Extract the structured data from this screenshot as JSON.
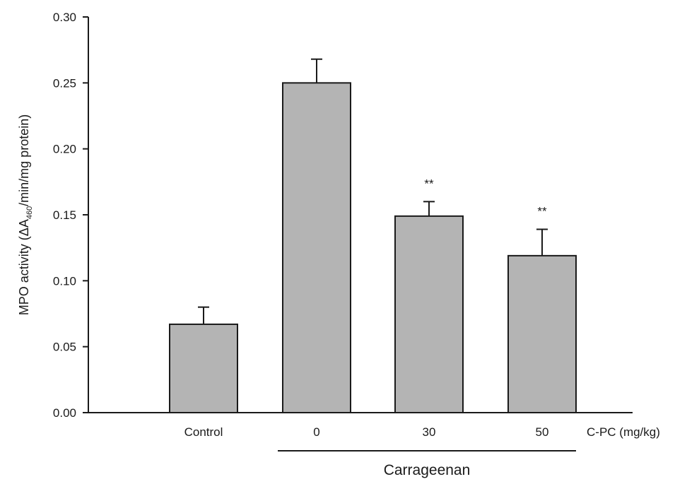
{
  "chart_data": {
    "type": "bar",
    "categories": [
      "Control",
      "0",
      "30",
      "50"
    ],
    "values": [
      0.067,
      0.25,
      0.149,
      0.119
    ],
    "errors": [
      0.013,
      0.018,
      0.011,
      0.02
    ],
    "annotations": [
      "",
      "",
      "**",
      "**"
    ],
    "ylabel_parts": [
      "MPO activity (",
      "ΔA",
      "460",
      "/min/mg protein)"
    ],
    "xlabel": "C-PC (mg/kg)",
    "group_label": "Carrageenan",
    "ylim": [
      0,
      0.3
    ],
    "yticks": [
      "0.00",
      "0.05",
      "0.10",
      "0.15",
      "0.20",
      "0.25",
      "0.30"
    ],
    "bar_color": "#b4b4b4",
    "edge_color": "#1a1a1a",
    "grid": false
  }
}
